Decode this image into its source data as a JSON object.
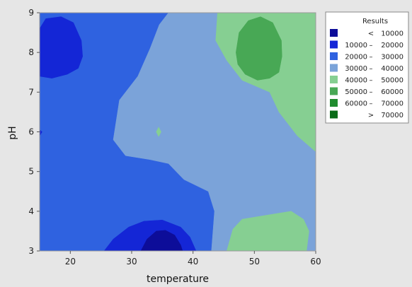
{
  "chart_data": {
    "type": "contour",
    "xlabel": "temperature",
    "ylabel": "pH",
    "xlim": [
      15,
      60
    ],
    "ylim": [
      3,
      9
    ],
    "x_ticks": [
      20,
      30,
      40,
      50,
      60
    ],
    "y_ticks": [
      3,
      4,
      5,
      6,
      7,
      8,
      9
    ],
    "legend": {
      "title": "Results",
      "placement": "top-right-outside",
      "items": [
        {
          "op": "<",
          "lo": "",
          "dash": "",
          "hi": "10000",
          "color": "#0d0d99"
        },
        {
          "op": "",
          "lo": "10000",
          "dash": "–",
          "hi": "20000",
          "color": "#1426d6"
        },
        {
          "op": "",
          "lo": "20000",
          "dash": "–",
          "hi": "30000",
          "color": "#2f62e0"
        },
        {
          "op": "",
          "lo": "30000",
          "dash": "–",
          "hi": "40000",
          "color": "#7ba3d9"
        },
        {
          "op": "",
          "lo": "40000",
          "dash": "–",
          "hi": "50000",
          "color": "#86cf92"
        },
        {
          "op": "",
          "lo": "50000",
          "dash": "–",
          "hi": "60000",
          "color": "#48a855"
        },
        {
          "op": "",
          "lo": "60000",
          "dash": "–",
          "hi": "70000",
          "color": "#1f8b2e"
        },
        {
          "op": ">",
          "lo": "",
          "dash": "",
          "hi": "70000",
          "color": "#0b6b18"
        }
      ]
    },
    "regions": [
      {
        "band": "20000 – 30000",
        "color": "#2f62e0",
        "points": [
          [
            15,
            3
          ],
          [
            60,
            3
          ],
          [
            60,
            9
          ],
          [
            15,
            9
          ]
        ]
      },
      {
        "band": "30000 – 40000",
        "color": "#7ba3d9",
        "points": [
          [
            36,
            9
          ],
          [
            60,
            9
          ],
          [
            60,
            3
          ],
          [
            43,
            3
          ],
          [
            43.5,
            4
          ],
          [
            42.5,
            4.5
          ],
          [
            38.5,
            4.8
          ],
          [
            36,
            5.2
          ],
          [
            33,
            5.3
          ],
          [
            29,
            5.4
          ],
          [
            27,
            5.8
          ],
          [
            28,
            6.8
          ],
          [
            31,
            7.4
          ],
          [
            33,
            8.1
          ],
          [
            34.5,
            8.7
          ],
          [
            36,
            9
          ]
        ]
      },
      {
        "band": "40000 – 50000",
        "color": "#86cf92",
        "points": [
          [
            44,
            9
          ],
          [
            60,
            9
          ],
          [
            60,
            5.5
          ],
          [
            57,
            5.9
          ],
          [
            54,
            6.5
          ],
          [
            52.5,
            7
          ],
          [
            48,
            7.3
          ],
          [
            45.5,
            7.8
          ],
          [
            43.7,
            8.3
          ],
          [
            44,
            9
          ]
        ]
      },
      {
        "band": "40000 – 50000",
        "color": "#86cf92",
        "points": [
          [
            45.5,
            3
          ],
          [
            58.5,
            3
          ],
          [
            58.9,
            3.5
          ],
          [
            58,
            3.8
          ],
          [
            56,
            4
          ],
          [
            52,
            3.9
          ],
          [
            48,
            3.8
          ],
          [
            46.5,
            3.55
          ],
          [
            45.5,
            3
          ]
        ]
      },
      {
        "band": "40000 – 50000",
        "color": "#86cf92",
        "points": [
          [
            34,
            6
          ],
          [
            34.4,
            6.12
          ],
          [
            34.8,
            6
          ],
          [
            34.4,
            5.88
          ],
          [
            34,
            6
          ]
        ]
      },
      {
        "band": "50000 – 60000",
        "color": "#48a855",
        "points": [
          [
            47,
            8
          ],
          [
            47.5,
            8.5
          ],
          [
            49,
            8.8
          ],
          [
            51,
            8.9
          ],
          [
            53,
            8.75
          ],
          [
            54.4,
            8.3
          ],
          [
            54.5,
            7.9
          ],
          [
            54,
            7.5
          ],
          [
            52.5,
            7.35
          ],
          [
            50.5,
            7.3
          ],
          [
            48.5,
            7.45
          ],
          [
            47.3,
            7.7
          ],
          [
            47,
            8
          ]
        ]
      },
      {
        "band": "10000 – 20000",
        "color": "#1426d6",
        "points": [
          [
            15,
            8.6
          ],
          [
            16,
            8.85
          ],
          [
            18.5,
            8.9
          ],
          [
            20.5,
            8.75
          ],
          [
            21.8,
            8.3
          ],
          [
            22,
            7.9
          ],
          [
            21.3,
            7.6
          ],
          [
            19.5,
            7.45
          ],
          [
            17,
            7.35
          ],
          [
            15,
            7.4
          ]
        ]
      },
      {
        "band": "10000 – 20000",
        "color": "#1426d6",
        "points": [
          [
            25.5,
            3
          ],
          [
            27,
            3.3
          ],
          [
            29.5,
            3.6
          ],
          [
            32,
            3.75
          ],
          [
            35,
            3.78
          ],
          [
            38,
            3.6
          ],
          [
            39.5,
            3.35
          ],
          [
            40.5,
            3
          ],
          [
            25.5,
            3
          ]
        ]
      },
      {
        "band": "10000 – 20000",
        "color": "#1426d6",
        "points": [
          [
            15,
            6.05
          ],
          [
            15.4,
            6
          ],
          [
            15,
            5.9
          ]
        ]
      },
      {
        "band": "< 10000",
        "color": "#0d0d99",
        "points": [
          [
            31.5,
            3
          ],
          [
            32.5,
            3.3
          ],
          [
            34,
            3.5
          ],
          [
            35.5,
            3.52
          ],
          [
            37,
            3.4
          ],
          [
            38,
            3.15
          ],
          [
            38.3,
            3
          ],
          [
            31.5,
            3
          ]
        ]
      }
    ]
  }
}
